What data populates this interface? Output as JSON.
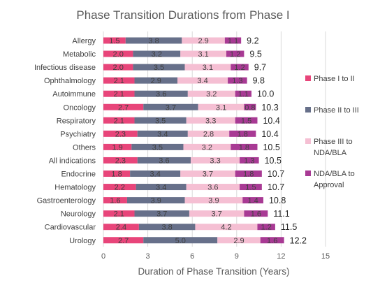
{
  "chart_data": {
    "type": "bar",
    "orientation": "horizontal",
    "stacked": true,
    "title": "Phase Transition Durations from Phase I",
    "xlabel": "Duration of Phase Transition (Years)",
    "ylabel": "",
    "xlim": [
      0,
      15
    ],
    "xticks": [
      "0",
      "3",
      "6",
      "9",
      "12",
      "15"
    ],
    "grid": true,
    "legend_position": "right",
    "categories": [
      "Allergy",
      "Metabolic",
      "Infectious disease",
      "Ophthalmology",
      "Autoimmune",
      "Oncology",
      "Respiratory",
      "Psychiatry",
      "Others",
      "All indications",
      "Endocrine",
      "Hematology",
      "Gastroenterology",
      "Neurology",
      "Cardiovascular",
      "Urology"
    ],
    "series": [
      {
        "name": "Phase I to II",
        "color": "#e8457a",
        "values": [
          1.5,
          2.0,
          2.0,
          2.1,
          2.1,
          2.7,
          2.1,
          2.3,
          1.9,
          2.3,
          1.8,
          2.2,
          1.6,
          2.1,
          2.4,
          2.7
        ]
      },
      {
        "name": "Phase II to III",
        "color": "#67708a",
        "values": [
          3.8,
          3.2,
          3.5,
          2.9,
          3.6,
          3.7,
          3.5,
          3.4,
          3.5,
          3.6,
          3.4,
          3.4,
          3.9,
          3.7,
          3.8,
          5.0
        ]
      },
      {
        "name": "Phase III to NDA/BLA",
        "color": "#f5bfd3",
        "values": [
          2.9,
          3.1,
          3.1,
          3.4,
          3.2,
          3.1,
          3.3,
          2.8,
          3.2,
          3.3,
          3.7,
          3.6,
          3.9,
          3.7,
          4.2,
          2.9
        ]
      },
      {
        "name": "NDA/BLA to Approval",
        "color": "#a83a94",
        "values": [
          1.1,
          1.2,
          1.2,
          1.3,
          1.1,
          0.8,
          1.5,
          1.8,
          1.8,
          1.3,
          1.8,
          1.5,
          1.4,
          1.6,
          1.2,
          1.6
        ]
      }
    ],
    "totals": [
      "9.2",
      "9.5",
      "9.7",
      "9.8",
      "10.0",
      "10.3",
      "10.4",
      "10.4",
      "10.5",
      "10.5",
      "10.7",
      "10.7",
      "10.8",
      "11.1",
      "11.5",
      "12.2"
    ]
  }
}
